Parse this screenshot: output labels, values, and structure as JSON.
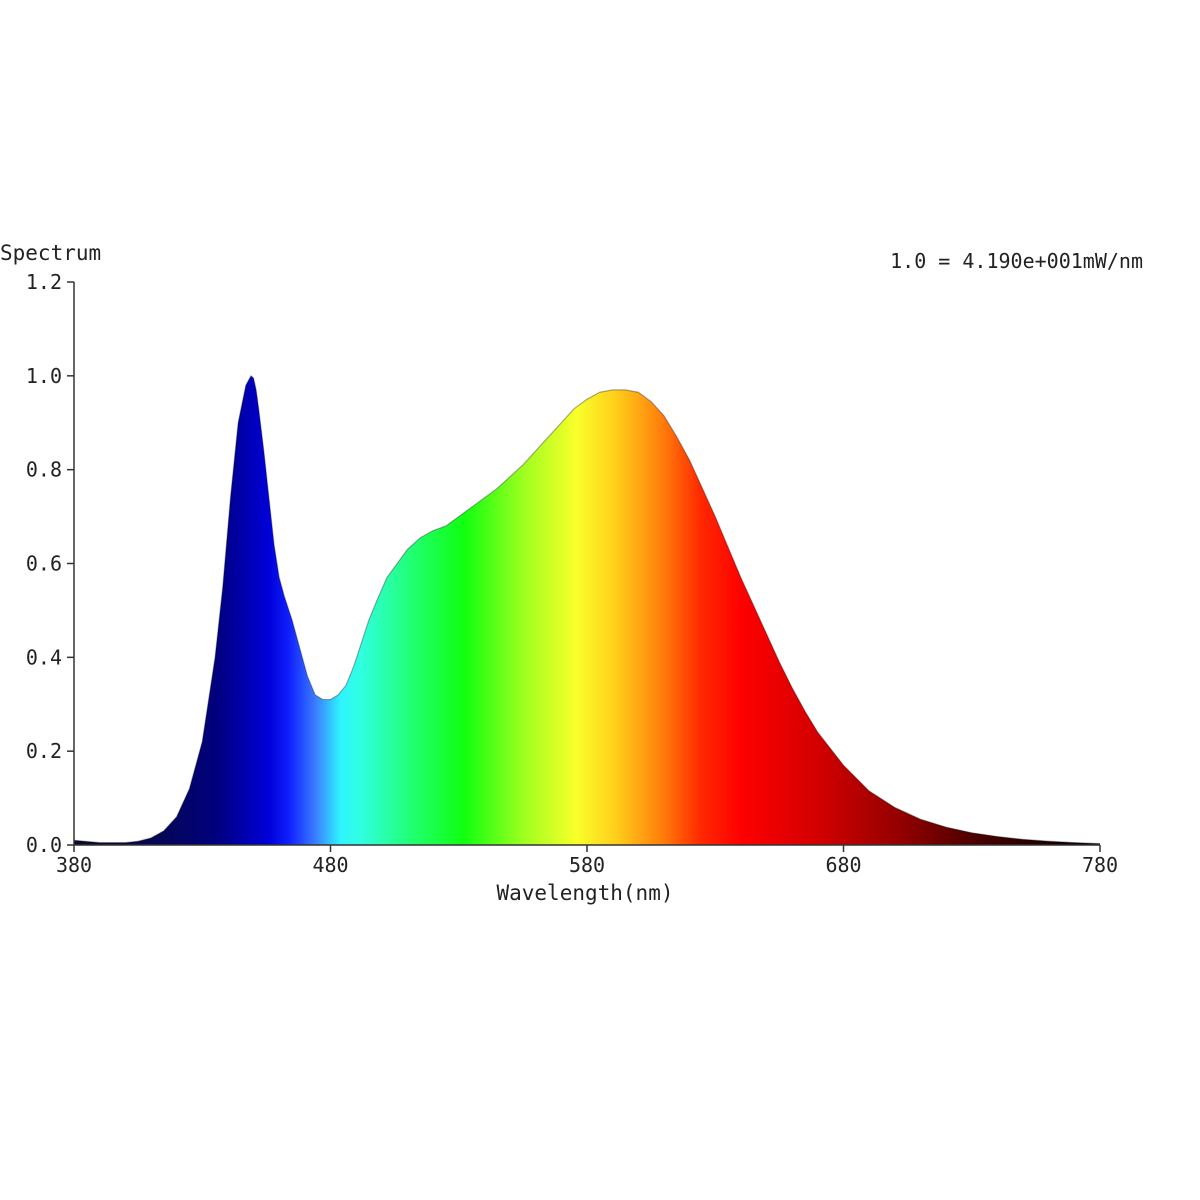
{
  "chart_data": {
    "type": "area",
    "ylabel": "Spectrum",
    "xlabel": "Wavelength(nm)",
    "annotation": "1.0 = 4.190e+001mW/nm",
    "xlim": [
      380,
      780
    ],
    "ylim": [
      0,
      1.2
    ],
    "x_ticks": [
      {
        "value": 380,
        "label": "380"
      },
      {
        "value": 480,
        "label": "480"
      },
      {
        "value": 580,
        "label": "580"
      },
      {
        "value": 680,
        "label": "680"
      },
      {
        "value": 780,
        "label": "780"
      }
    ],
    "y_ticks": [
      {
        "value": 0.0,
        "label": "0.0"
      },
      {
        "value": 0.2,
        "label": "0.2"
      },
      {
        "value": 0.4,
        "label": "0.4"
      },
      {
        "value": 0.6,
        "label": "0.6"
      },
      {
        "value": 0.8,
        "label": "0.8"
      },
      {
        "value": 1.0,
        "label": "1.0"
      },
      {
        "value": 1.2,
        "label": "1.2"
      }
    ],
    "grid": false,
    "fill": "wavelength-colored spectrum",
    "series": [
      {
        "x": [
          380,
          390,
          400,
          405,
          410,
          415,
          420,
          425,
          430,
          435,
          438,
          441,
          444,
          447,
          449,
          450,
          451,
          452,
          454,
          456,
          458,
          460,
          462,
          465,
          468,
          471,
          474,
          477,
          480,
          483,
          486,
          489,
          492,
          495,
          498,
          502,
          506,
          510,
          515,
          520,
          525,
          530,
          535,
          540,
          545,
          550,
          555,
          560,
          565,
          570,
          575,
          580,
          585,
          590,
          595,
          600,
          605,
          610,
          615,
          620,
          625,
          630,
          635,
          640,
          645,
          650,
          655,
          660,
          665,
          670,
          680,
          690,
          700,
          710,
          720,
          730,
          740,
          750,
          760,
          770,
          780
        ],
        "y": [
          0.01,
          0.005,
          0.005,
          0.008,
          0.015,
          0.03,
          0.06,
          0.12,
          0.22,
          0.4,
          0.55,
          0.74,
          0.9,
          0.98,
          1.0,
          0.995,
          0.97,
          0.93,
          0.84,
          0.74,
          0.64,
          0.57,
          0.53,
          0.48,
          0.42,
          0.36,
          0.32,
          0.31,
          0.31,
          0.32,
          0.34,
          0.38,
          0.43,
          0.48,
          0.52,
          0.57,
          0.6,
          0.63,
          0.655,
          0.67,
          0.68,
          0.7,
          0.72,
          0.74,
          0.76,
          0.785,
          0.81,
          0.84,
          0.87,
          0.9,
          0.93,
          0.95,
          0.965,
          0.97,
          0.97,
          0.965,
          0.945,
          0.915,
          0.87,
          0.82,
          0.76,
          0.7,
          0.635,
          0.57,
          0.51,
          0.45,
          0.39,
          0.335,
          0.285,
          0.24,
          0.17,
          0.115,
          0.08,
          0.055,
          0.038,
          0.026,
          0.018,
          0.012,
          0.008,
          0.005,
          0.003
        ]
      }
    ]
  }
}
